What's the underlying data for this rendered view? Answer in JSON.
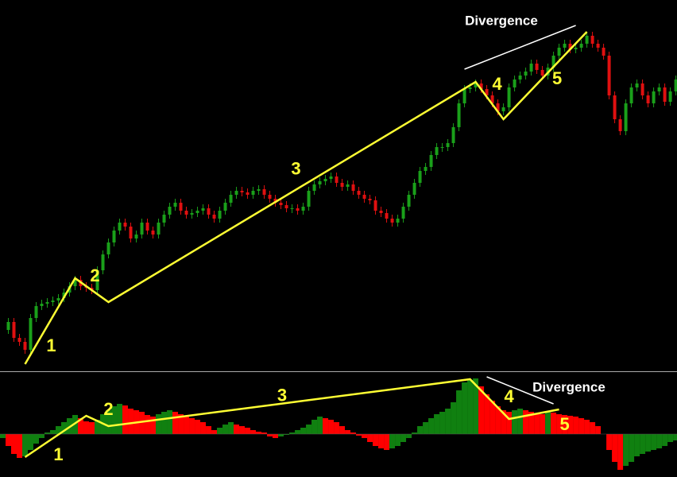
{
  "chart_data": [
    {
      "type": "candlestick",
      "up_color": "#1aa01a",
      "down_color": "#e01010",
      "wave_color": "#ffff33",
      "xlim": [
        0,
        121.7
      ],
      "ylim": [
        0,
        466
      ],
      "values": [
        51,
        61,
        41,
        36,
        26,
        66,
        81,
        84,
        86,
        88,
        91,
        98,
        106,
        114,
        106,
        104,
        101,
        126,
        146,
        161,
        176,
        186,
        181,
        166,
        171,
        186,
        176,
        171,
        186,
        196,
        206,
        211,
        201,
        196,
        198,
        201,
        204,
        196,
        191,
        201,
        211,
        221,
        226,
        224,
        221,
        226,
        228,
        221,
        216,
        211,
        208,
        204,
        204,
        201,
        206,
        226,
        234,
        238,
        241,
        244,
        236,
        231,
        234,
        226,
        221,
        216,
        214,
        201,
        198,
        191,
        186,
        191,
        206,
        221,
        236,
        251,
        256,
        271,
        281,
        281,
        286,
        306,
        336,
        354,
        356,
        361,
        354,
        346,
        336,
        326,
        331,
        356,
        366,
        371,
        376,
        386,
        378,
        371,
        381,
        396,
        406,
        411,
        404,
        406,
        411,
        421,
        411,
        406,
        396,
        346,
        316,
        301,
        336,
        356,
        361,
        346,
        336,
        351,
        356,
        338,
        351,
        366
      ],
      "wave_x": [
        4,
        13,
        19,
        85,
        90,
        105
      ],
      "wave_y": [
        8,
        116,
        86,
        363,
        316,
        426
      ],
      "wave_labels": [
        "1",
        "2",
        "3",
        "4",
        "5"
      ],
      "divergence_x": [
        83,
        103
      ],
      "divergence_y": [
        379,
        434
      ],
      "annotation": "Divergence"
    },
    {
      "type": "histogram",
      "up_color": "#108010",
      "down_color": "#ff0000",
      "wave_color": "#ffff33",
      "xlim": [
        0,
        121.7
      ],
      "ylim": [
        -54,
        76
      ],
      "values": [
        -5,
        -15,
        -25,
        -30,
        -28,
        -20,
        -12,
        -5,
        2,
        5,
        10,
        15,
        20,
        24,
        20,
        16,
        15,
        18,
        25,
        30,
        35,
        38,
        36,
        32,
        30,
        28,
        24,
        22,
        25,
        28,
        30,
        28,
        25,
        22,
        20,
        18,
        15,
        10,
        5,
        8,
        12,
        15,
        12,
        10,
        8,
        5,
        3,
        2,
        -3,
        -5,
        -3,
        -1,
        2,
        5,
        8,
        12,
        18,
        22,
        20,
        18,
        15,
        10,
        5,
        2,
        -2,
        -5,
        -10,
        -15,
        -18,
        -20,
        -18,
        -15,
        -10,
        -5,
        2,
        10,
        15,
        20,
        25,
        28,
        32,
        40,
        55,
        65,
        68,
        70,
        60,
        50,
        42,
        35,
        30,
        28,
        30,
        32,
        30,
        28,
        26,
        25,
        28,
        27,
        25,
        24,
        23,
        22,
        20,
        18,
        15,
        10,
        0,
        -20,
        -35,
        -45,
        -40,
        -35,
        -28,
        -25,
        -22,
        -20,
        -18,
        -15,
        -10,
        -8
      ],
      "wave_x": [
        4,
        15,
        19,
        84,
        91,
        100
      ],
      "wave_y": [
        -29,
        23,
        10,
        69,
        19,
        31
      ],
      "wave_labels": [
        "1",
        "2",
        "3",
        "4",
        "5"
      ],
      "divergence_x": [
        87,
        99
      ],
      "divergence_y": [
        72,
        38
      ],
      "annotation": "Divergence"
    }
  ]
}
